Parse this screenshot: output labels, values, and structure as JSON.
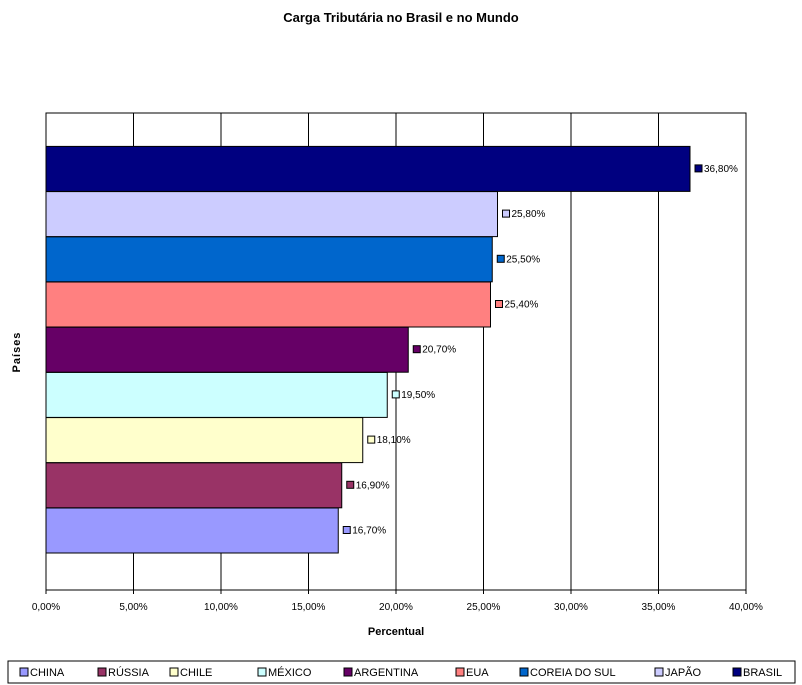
{
  "chart_data": {
    "type": "bar",
    "orientation": "horizontal",
    "title": "Carga Tributária no Brasil e no Mundo",
    "xlabel": "Percentual",
    "ylabel": "Países",
    "xlim": [
      0,
      40
    ],
    "x_ticks": [
      "0,00%",
      "5,00%",
      "10,00%",
      "15,00%",
      "20,00%",
      "25,00%",
      "30,00%",
      "35,00%",
      "40,00%"
    ],
    "grid": "vertical",
    "legend_position": "bottom",
    "series": [
      {
        "name": "CHINA",
        "value": 16.7,
        "label": "16,70%",
        "color": "#9999ff"
      },
      {
        "name": "RÚSSIA",
        "value": 16.9,
        "label": "16,90%",
        "color": "#993366"
      },
      {
        "name": "CHILE",
        "value": 18.1,
        "label": "18,10%",
        "color": "#ffffcc"
      },
      {
        "name": "MÉXICO",
        "value": 19.5,
        "label": "19,50%",
        "color": "#ccffff"
      },
      {
        "name": "ARGENTINA",
        "value": 20.7,
        "label": "20,70%",
        "color": "#660066"
      },
      {
        "name": "EUA",
        "value": 25.4,
        "label": "25,40%",
        "color": "#ff8080"
      },
      {
        "name": "COREIA DO SUL",
        "value": 25.5,
        "label": "25,50%",
        "color": "#0066cc"
      },
      {
        "name": "JAPÃO",
        "value": 25.8,
        "label": "25,80%",
        "color": "#ccccff"
      },
      {
        "name": "BRASIL",
        "value": 36.8,
        "label": "36,80%",
        "color": "#000080"
      }
    ]
  }
}
